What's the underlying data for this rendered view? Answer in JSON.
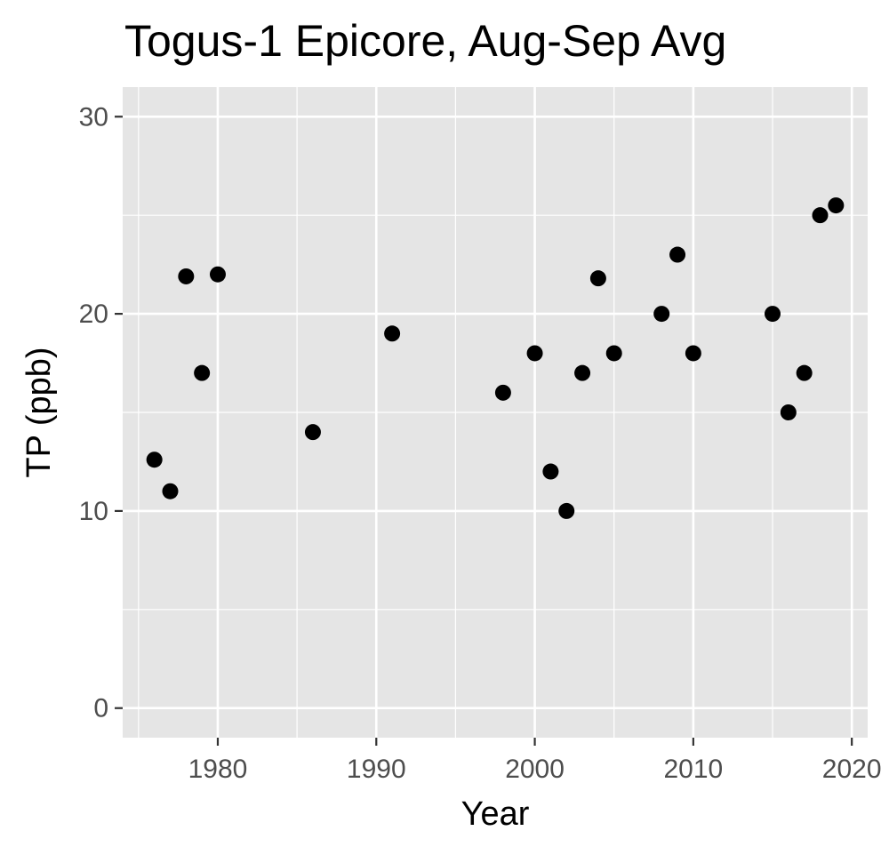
{
  "chart_data": {
    "type": "scatter",
    "title": "Togus-1 Epicore, Aug-Sep Avg",
    "xlabel": "Year",
    "ylabel": "TP (ppb)",
    "xlim": [
      1974,
      2021
    ],
    "ylim": [
      -1.5,
      31.5
    ],
    "x_ticks": [
      1980,
      1990,
      2000,
      2010,
      2020
    ],
    "y_ticks": [
      0,
      10,
      20,
      30
    ],
    "grid": true,
    "legend": "none",
    "panel_color": "#e5e5e5",
    "point_color": "#000000",
    "points": [
      {
        "x": 1976,
        "y": 12.6
      },
      {
        "x": 1977,
        "y": 11.0
      },
      {
        "x": 1978,
        "y": 21.9
      },
      {
        "x": 1979,
        "y": 17.0
      },
      {
        "x": 1980,
        "y": 22.0
      },
      {
        "x": 1986,
        "y": 14.0
      },
      {
        "x": 1991,
        "y": 19.0
      },
      {
        "x": 1998,
        "y": 16.0
      },
      {
        "x": 2000,
        "y": 18.0
      },
      {
        "x": 2001,
        "y": 12.0
      },
      {
        "x": 2002,
        "y": 10.0
      },
      {
        "x": 2003,
        "y": 17.0
      },
      {
        "x": 2004,
        "y": 21.8
      },
      {
        "x": 2005,
        "y": 18.0
      },
      {
        "x": 2008,
        "y": 20.0
      },
      {
        "x": 2009,
        "y": 23.0
      },
      {
        "x": 2010,
        "y": 18.0
      },
      {
        "x": 2015,
        "y": 20.0
      },
      {
        "x": 2016,
        "y": 15.0
      },
      {
        "x": 2017,
        "y": 17.0
      },
      {
        "x": 2018,
        "y": 25.0
      },
      {
        "x": 2019,
        "y": 25.5
      }
    ]
  }
}
